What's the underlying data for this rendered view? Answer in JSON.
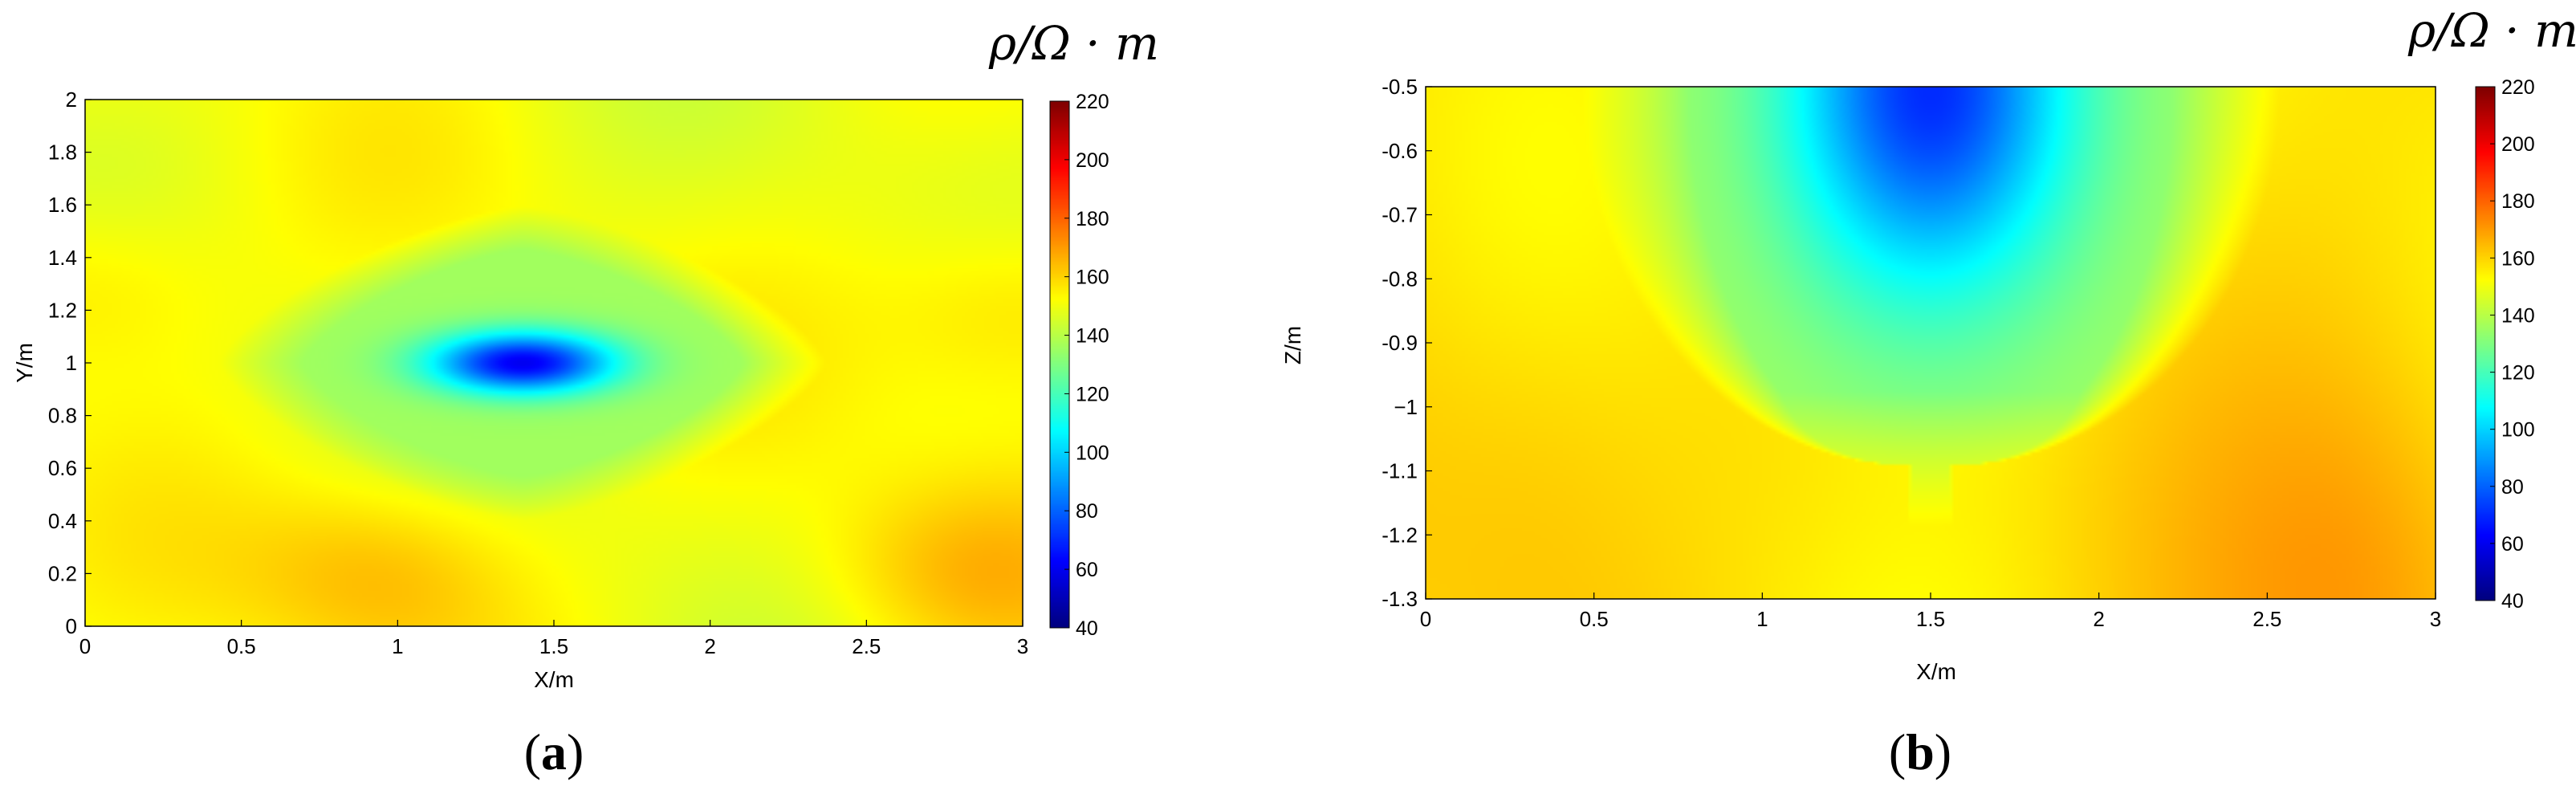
{
  "colorbar": {
    "title": "ρ/Ω · m",
    "min": 40,
    "max": 220,
    "ticks": [
      "220",
      "200",
      "180",
      "160",
      "140",
      "120",
      "100",
      "80",
      "60",
      "40"
    ]
  },
  "chart_data": [
    {
      "type": "heatmap",
      "caption": "(a)",
      "xlabel": "X/m",
      "ylabel": "Y/m",
      "xlim": [
        0,
        3
      ],
      "ylim": [
        0,
        2
      ],
      "xticks": [
        "0",
        "0.5",
        "1",
        "1.5",
        "2",
        "2.5",
        "3"
      ],
      "yticks": [
        "0",
        "0.2",
        "0.4",
        "0.6",
        "0.8",
        "1",
        "1.2",
        "1.4",
        "1.6",
        "1.8",
        "2"
      ],
      "value_label": "ρ/Ω · m",
      "color_range": [
        40,
        220
      ],
      "background_value": 150,
      "features": [
        {
          "kind": "low",
          "x": 1.4,
          "y": 1.0,
          "min_value": 60,
          "half_width": 0.78,
          "half_height": 0.48,
          "description_value": 130
        },
        {
          "kind": "high",
          "x": 0.95,
          "y": 0.2,
          "value": 165
        },
        {
          "kind": "high",
          "x": 3.0,
          "y": 1.2,
          "value": 162
        },
        {
          "kind": "high",
          "x": 0.0,
          "y": 1.3,
          "value": 160
        },
        {
          "kind": "high",
          "x": 2.8,
          "y": 0.2,
          "value": 163
        }
      ]
    },
    {
      "type": "heatmap",
      "caption": "(b)",
      "xlabel": "X/m",
      "ylabel": "Z/m",
      "xlim": [
        0,
        3
      ],
      "ylim": [
        -1.3,
        -0.5
      ],
      "xticks": [
        "0",
        "0.5",
        "1",
        "1.5",
        "2",
        "2.5",
        "3"
      ],
      "yticks": [
        "-1.3",
        "-1.2",
        "-1.1",
        "−1",
        "-0.9",
        "-0.8",
        "-0.7",
        "-0.6",
        "-0.5"
      ],
      "value_label": "ρ/Ω · m",
      "color_range": [
        40,
        220
      ],
      "background_value": 158,
      "features": [
        {
          "kind": "low",
          "x": 1.5,
          "y": -0.5,
          "min_value": 70,
          "half_width": 0.75,
          "depth_to": -1.03,
          "description_value": 128
        },
        {
          "kind": "high",
          "x": 0.3,
          "y": -1.1,
          "value": 165
        },
        {
          "kind": "high",
          "x": 2.85,
          "y": -1.28,
          "value": 168
        }
      ]
    }
  ]
}
